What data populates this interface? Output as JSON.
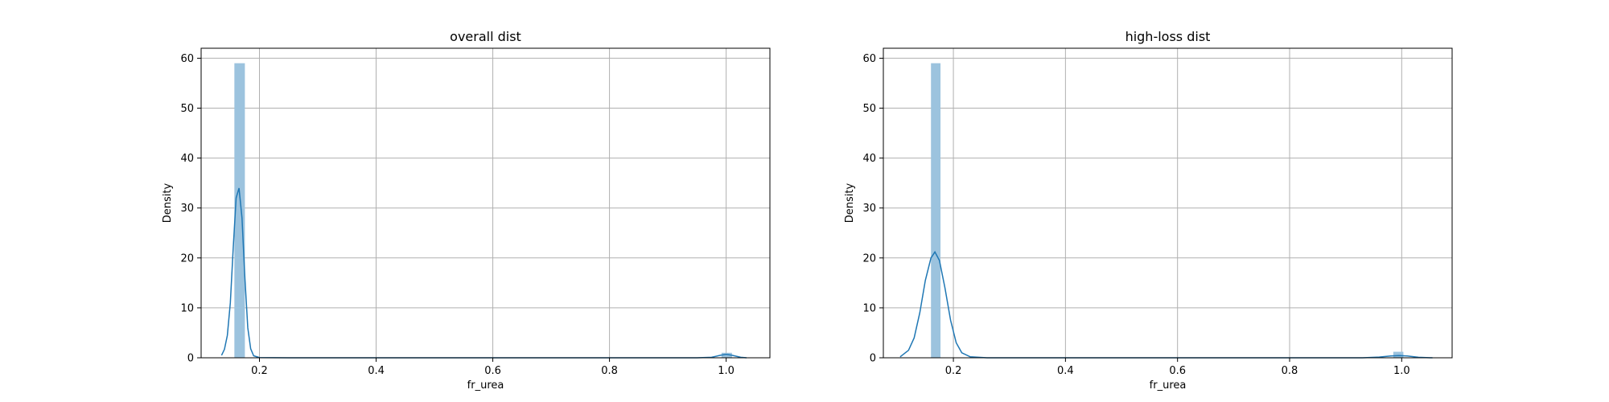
{
  "chart_data": [
    {
      "type": "histogram",
      "title": "overall dist",
      "xlabel": "fr_urea",
      "ylabel": "Density",
      "xlim": [
        0.1,
        1.075
      ],
      "ylim": [
        0,
        62
      ],
      "xticks": [
        "0.2",
        "0.4",
        "0.6",
        "0.8",
        "1.0"
      ],
      "yticks": [
        "0",
        "10",
        "20",
        "30",
        "40",
        "50",
        "60"
      ],
      "grid": true,
      "bar_color": "#9cc3de",
      "kde_color": "#1f77b4",
      "bars": [
        {
          "x0": 0.157,
          "x1": 0.175,
          "value": 59
        },
        {
          "x0": 0.992,
          "x1": 1.01,
          "value": 1.0
        }
      ],
      "kde": [
        [
          0.135,
          0.5
        ],
        [
          0.14,
          1.7
        ],
        [
          0.145,
          4.5
        ],
        [
          0.15,
          11
        ],
        [
          0.155,
          22
        ],
        [
          0.16,
          32
        ],
        [
          0.165,
          34
        ],
        [
          0.17,
          28
        ],
        [
          0.175,
          16
        ],
        [
          0.18,
          6
        ],
        [
          0.185,
          1.8
        ],
        [
          0.19,
          0.4
        ],
        [
          0.2,
          0.05
        ],
        [
          0.25,
          0
        ],
        [
          0.95,
          0
        ],
        [
          0.975,
          0.1
        ],
        [
          0.99,
          0.5
        ],
        [
          1.0,
          0.7
        ],
        [
          1.01,
          0.5
        ],
        [
          1.025,
          0.1
        ],
        [
          1.035,
          0
        ]
      ]
    },
    {
      "type": "histogram",
      "title": "high-loss dist",
      "xlabel": "fr_urea",
      "ylabel": "Density",
      "xlim": [
        0.075,
        1.09
      ],
      "ylim": [
        0,
        62
      ],
      "xticks": [
        "0.2",
        "0.4",
        "0.6",
        "0.8",
        "1.0"
      ],
      "yticks": [
        "0",
        "10",
        "20",
        "30",
        "40",
        "50",
        "60"
      ],
      "grid": true,
      "bar_color": "#9cc3de",
      "kde_color": "#1f77b4",
      "bars": [
        {
          "x0": 0.16,
          "x1": 0.177,
          "value": 59
        },
        {
          "x0": 0.985,
          "x1": 1.003,
          "value": 1.2
        }
      ],
      "kde": [
        [
          0.105,
          0.2
        ],
        [
          0.12,
          1.5
        ],
        [
          0.13,
          4
        ],
        [
          0.14,
          9
        ],
        [
          0.15,
          15.5
        ],
        [
          0.16,
          20
        ],
        [
          0.167,
          21.2
        ],
        [
          0.175,
          19.5
        ],
        [
          0.185,
          14
        ],
        [
          0.195,
          7.5
        ],
        [
          0.205,
          3
        ],
        [
          0.215,
          1
        ],
        [
          0.23,
          0.2
        ],
        [
          0.26,
          0
        ],
        [
          0.93,
          0
        ],
        [
          0.96,
          0.15
        ],
        [
          0.98,
          0.35
        ],
        [
          0.995,
          0.45
        ],
        [
          1.01,
          0.35
        ],
        [
          1.03,
          0.1
        ],
        [
          1.055,
          0
        ]
      ]
    }
  ]
}
